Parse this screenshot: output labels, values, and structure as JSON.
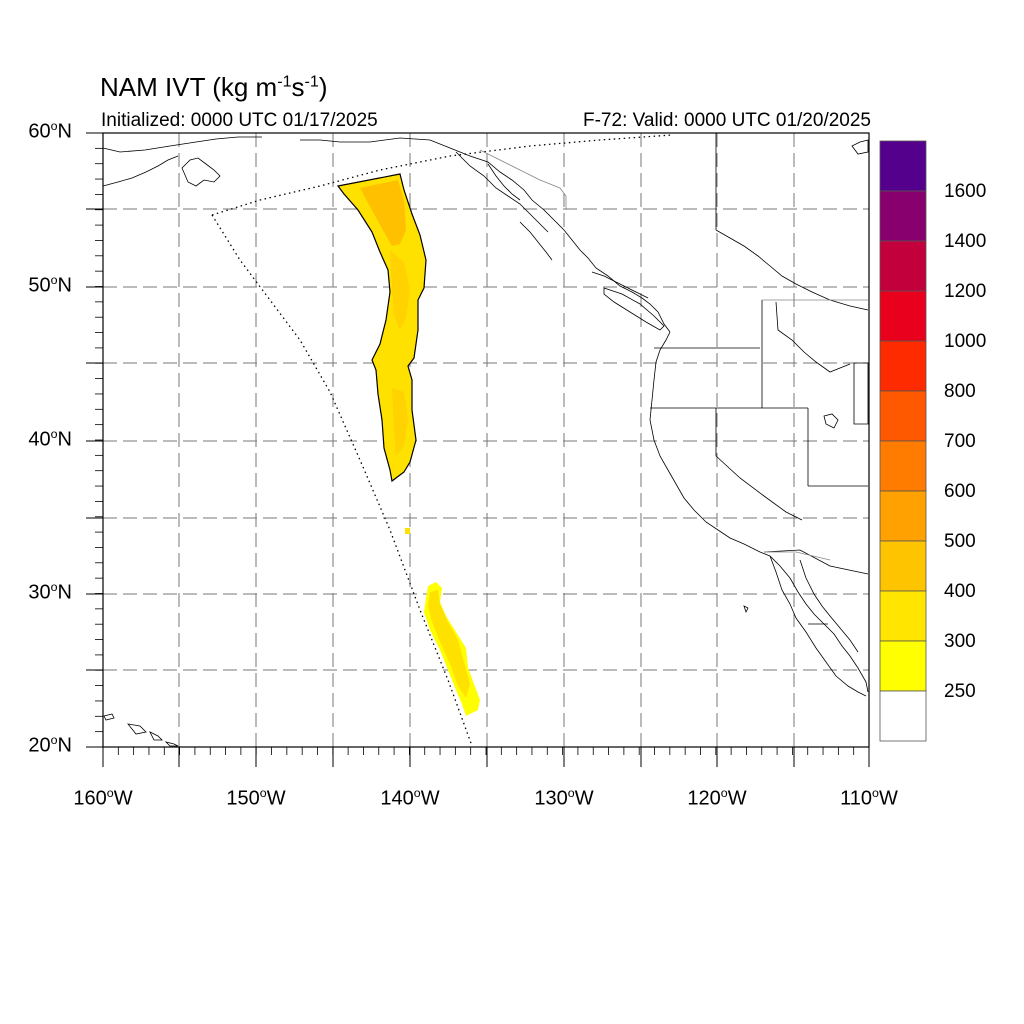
{
  "header": {
    "title_main": "NAM IVT (kg m",
    "title_sup1": "-1",
    "title_mid": "s",
    "title_sup2": "-1",
    "title_end": ")",
    "initialized": "Initialized: 0000 UTC 01/17/2025",
    "valid": "F-72: Valid: 0000 UTC 01/20/2025"
  },
  "axes": {
    "lat_ticks": [
      {
        "deg": "60",
        "sup": "o",
        "hem": "N",
        "value": 60
      },
      {
        "deg": "50",
        "sup": "o",
        "hem": "N",
        "value": 50
      },
      {
        "deg": "40",
        "sup": "o",
        "hem": "N",
        "value": 40
      },
      {
        "deg": "30",
        "sup": "o",
        "hem": "N",
        "value": 30
      },
      {
        "deg": "20",
        "sup": "o",
        "hem": "N",
        "value": 20
      }
    ],
    "lon_ticks": [
      {
        "deg": "160",
        "sup": "o",
        "hem": "W",
        "value": -160
      },
      {
        "deg": "150",
        "sup": "o",
        "hem": "W",
        "value": -150
      },
      {
        "deg": "140",
        "sup": "o",
        "hem": "W",
        "value": -140
      },
      {
        "deg": "130",
        "sup": "o",
        "hem": "W",
        "value": -130
      },
      {
        "deg": "120",
        "sup": "o",
        "hem": "W",
        "value": -120
      },
      {
        "deg": "110",
        "sup": "o",
        "hem": "W",
        "value": -110
      }
    ],
    "lat_range": [
      20,
      60
    ],
    "lon_range": [
      -160,
      -110
    ]
  },
  "colorbar": {
    "labels": [
      "1600",
      "1400",
      "1200",
      "1000",
      "800",
      "700",
      "600",
      "500",
      "400",
      "300",
      "250"
    ],
    "colors": [
      "#55008c",
      "#87006e",
      "#c2003c",
      "#e8001c",
      "#fe2a00",
      "#fe5800",
      "#ff7c00",
      "#ffa100",
      "#ffc400",
      "#ffe500",
      "#ffff00",
      "#ffffff"
    ]
  },
  "ivt_fill": {
    "low": "#ffe100",
    "mid": "#ffd200",
    "high": "#ffc000"
  }
}
